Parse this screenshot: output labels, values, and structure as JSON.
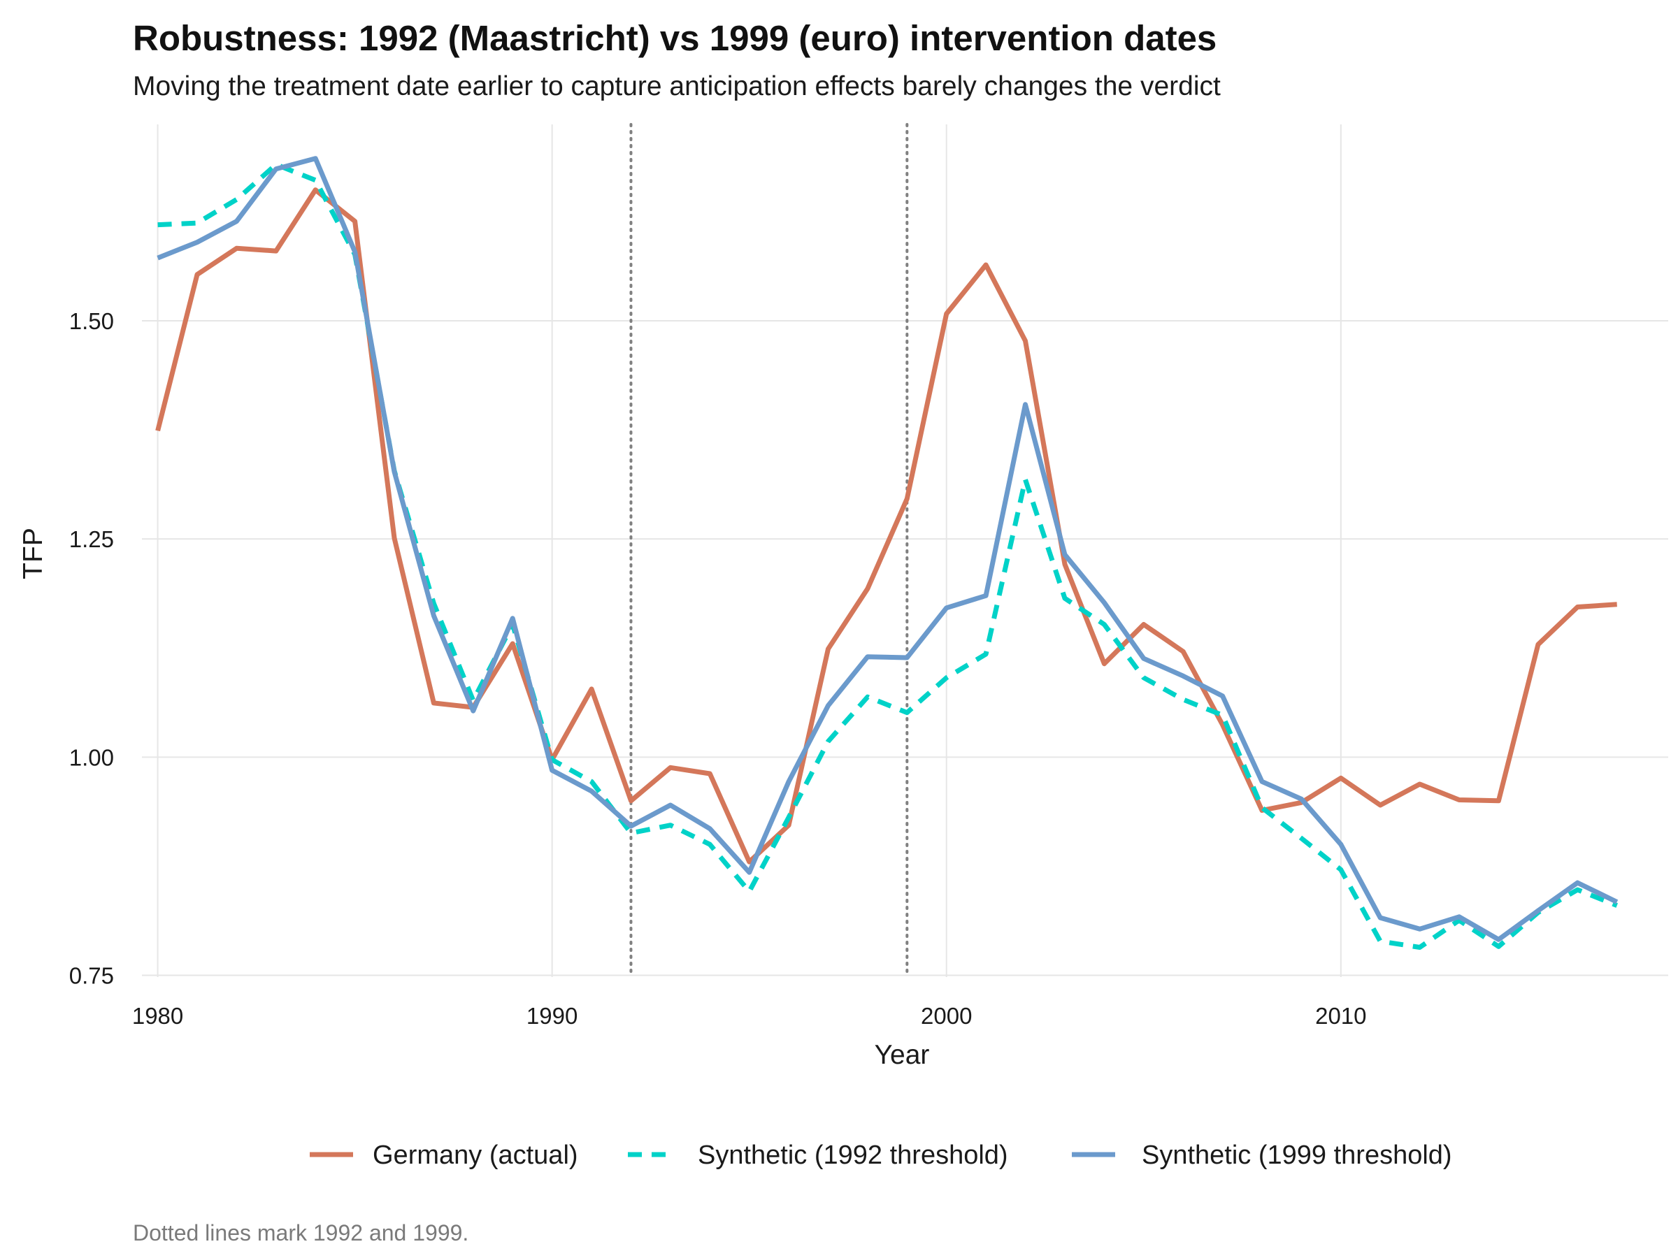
{
  "chart_data": {
    "type": "line",
    "title": "Robustness: 1992 (Maastricht) vs 1999 (euro) intervention dates",
    "subtitle": "Moving the treatment date earlier to capture anticipation effects barely changes the verdict",
    "xlabel": "Year",
    "ylabel": "TFP",
    "caption": "Dotted lines mark 1992 and 1999.",
    "xlim": [
      1979.6,
      2018.3
    ],
    "ylim": [
      0.748,
      1.725
    ],
    "x_ticks": [
      1980,
      1990,
      2000,
      2010
    ],
    "x_tick_labels": [
      "1980",
      "1990",
      "2000",
      "2010"
    ],
    "y_ticks": [
      0.75,
      1.0,
      1.25,
      1.5
    ],
    "y_tick_labels": [
      "0.75",
      "1.00",
      "1.25",
      "1.50"
    ],
    "grid": true,
    "legend_position": "bottom",
    "vlines": [
      1992,
      1999
    ],
    "x": [
      1980,
      1981,
      1982,
      1983,
      1984,
      1985,
      1986,
      1987,
      1988,
      1989,
      1990,
      1991,
      1992,
      1993,
      1994,
      1995,
      1996,
      1997,
      1998,
      1999,
      2000,
      2001,
      2002,
      2003,
      2004,
      2005,
      2006,
      2007,
      2008,
      2009,
      2010,
      2011,
      2012,
      2013,
      2014,
      2015,
      2016,
      2017
    ],
    "series": [
      {
        "name": "Germany (actual)",
        "color": "#D4775A",
        "style": "solid",
        "values": [
          1.374,
          1.553,
          1.583,
          1.58,
          1.65,
          1.614,
          1.251,
          1.062,
          1.057,
          1.13,
          0.997,
          1.078,
          0.95,
          0.988,
          0.981,
          0.88,
          0.922,
          1.124,
          1.193,
          1.296,
          1.508,
          1.564,
          1.477,
          1.221,
          1.107,
          1.152,
          1.121,
          1.037,
          0.939,
          0.948,
          0.976,
          0.945,
          0.969,
          0.951,
          0.95,
          1.129,
          1.172,
          1.175
        ]
      },
      {
        "name": "Synthetic (1992 threshold)",
        "color": "#00D2C8",
        "style": "dashed",
        "values": [
          1.61,
          1.612,
          1.639,
          1.679,
          1.661,
          1.576,
          1.328,
          1.176,
          1.065,
          1.152,
          0.997,
          0.972,
          0.913,
          0.922,
          0.9,
          0.846,
          0.931,
          1.018,
          1.069,
          1.051,
          1.091,
          1.118,
          1.318,
          1.182,
          1.152,
          1.091,
          1.066,
          1.048,
          0.942,
          0.907,
          0.871,
          0.789,
          0.782,
          0.813,
          0.783,
          0.822,
          0.848,
          0.83
        ]
      },
      {
        "name": "Synthetic (1999 threshold)",
        "color": "#6B9ACC",
        "style": "solid",
        "values": [
          1.572,
          1.59,
          1.614,
          1.674,
          1.686,
          1.579,
          1.327,
          1.162,
          1.053,
          1.159,
          0.985,
          0.961,
          0.921,
          0.945,
          0.918,
          0.868,
          0.972,
          1.059,
          1.115,
          1.114,
          1.171,
          1.185,
          1.404,
          1.232,
          1.177,
          1.113,
          1.093,
          1.07,
          0.972,
          0.952,
          0.9,
          0.816,
          0.803,
          0.817,
          0.791,
          0.824,
          0.856,
          0.834
        ]
      }
    ]
  }
}
